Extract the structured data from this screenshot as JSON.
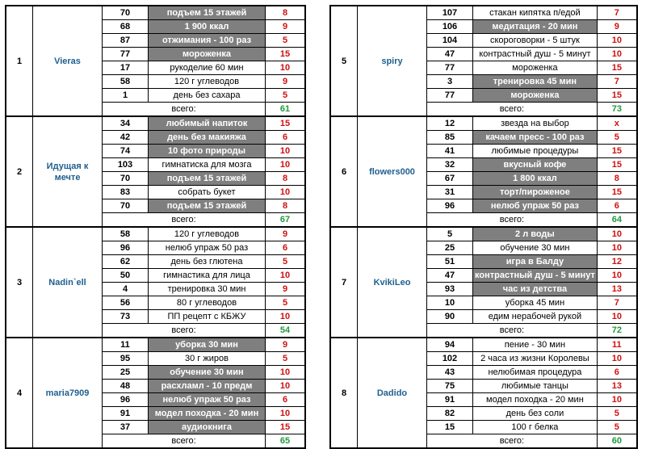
{
  "total_label": "всего:",
  "groups": [
    {
      "num": "1",
      "name": "Vieras",
      "total": "61",
      "rows": [
        {
          "val": "70",
          "task": "подъем 15 этажей",
          "score": "8",
          "hl": true
        },
        {
          "val": "68",
          "task": "1 900 ккал",
          "score": "9",
          "hl": true
        },
        {
          "val": "87",
          "task": "отжимания - 100 раз",
          "score": "5",
          "hl": true
        },
        {
          "val": "77",
          "task": "мороженка",
          "score": "15",
          "hl": true
        },
        {
          "val": "17",
          "task": "рукоделие 60 мин",
          "score": "10",
          "hl": false
        },
        {
          "val": "58",
          "task": "120 г углеводов",
          "score": "9",
          "hl": false
        },
        {
          "val": "1",
          "task": "день без сахара",
          "score": "5",
          "hl": false
        }
      ]
    },
    {
      "num": "2",
      "name": "Идущая к мечте",
      "total": "67",
      "rows": [
        {
          "val": "34",
          "task": "любимый напиток",
          "score": "15",
          "hl": true
        },
        {
          "val": "42",
          "task": "день без макияжа",
          "score": "6",
          "hl": true
        },
        {
          "val": "74",
          "task": "10 фото природы",
          "score": "10",
          "hl": true
        },
        {
          "val": "103",
          "task": "гимнатиска для мозга",
          "score": "10",
          "hl": false
        },
        {
          "val": "70",
          "task": "подъем 15 этажей",
          "score": "8",
          "hl": true
        },
        {
          "val": "83",
          "task": "собрать букет",
          "score": "10",
          "hl": false
        },
        {
          "val": "70",
          "task": "подъем 15 этажей",
          "score": "8",
          "hl": true
        }
      ]
    },
    {
      "num": "3",
      "name": "Nadin`ell",
      "total": "54",
      "rows": [
        {
          "val": "58",
          "task": "120 г углеводов",
          "score": "9",
          "hl": false
        },
        {
          "val": "96",
          "task": "нелюб упраж 50 раз",
          "score": "6",
          "hl": false
        },
        {
          "val": "62",
          "task": "день без глютена",
          "score": "5",
          "hl": false
        },
        {
          "val": "50",
          "task": "гимнастика для лица",
          "score": "10",
          "hl": false
        },
        {
          "val": "4",
          "task": "тренировка 30 мин",
          "score": "9",
          "hl": false
        },
        {
          "val": "56",
          "task": "80 г углеводов",
          "score": "5",
          "hl": false
        },
        {
          "val": "73",
          "task": "ПП рецепт с КБЖУ",
          "score": "10",
          "hl": false
        }
      ]
    },
    {
      "num": "4",
      "name": "maria7909",
      "total": "65",
      "rows": [
        {
          "val": "11",
          "task": "уборка 30 мин",
          "score": "9",
          "hl": true
        },
        {
          "val": "95",
          "task": "30 г жиров",
          "score": "5",
          "hl": false
        },
        {
          "val": "25",
          "task": "обучение 30 мин",
          "score": "10",
          "hl": true
        },
        {
          "val": "48",
          "task": "расхламл - 10 предм",
          "score": "10",
          "hl": true
        },
        {
          "val": "96",
          "task": "нелюб упраж 50 раз",
          "score": "6",
          "hl": true
        },
        {
          "val": "91",
          "task": "модел походка - 20 мин",
          "score": "10",
          "hl": true
        },
        {
          "val": "37",
          "task": "аудиокнига",
          "score": "15",
          "hl": true
        }
      ]
    },
    {
      "num": "5",
      "name": "spiry",
      "total": "73",
      "rows": [
        {
          "val": "107",
          "task": "стакан кипятка п/едой",
          "score": "7",
          "hl": false
        },
        {
          "val": "106",
          "task": "медитация - 20 мин",
          "score": "9",
          "hl": true
        },
        {
          "val": "104",
          "task": "скороговорки - 5 штук",
          "score": "10",
          "hl": false
        },
        {
          "val": "47",
          "task": "контрастный душ - 5 минут",
          "score": "10",
          "hl": false
        },
        {
          "val": "77",
          "task": "мороженка",
          "score": "15",
          "hl": false
        },
        {
          "val": "3",
          "task": "тренировка 45 мин",
          "score": "7",
          "hl": true
        },
        {
          "val": "77",
          "task": "мороженка",
          "score": "15",
          "hl": true
        }
      ]
    },
    {
      "num": "6",
      "name": "flowers000",
      "total": "64",
      "rows": [
        {
          "val": "12",
          "task": "звезда на выбор",
          "score": "х",
          "hl": false
        },
        {
          "val": "85",
          "task": "качаем пресс - 100 раз",
          "score": "5",
          "hl": true
        },
        {
          "val": "41",
          "task": "любимые процедуры",
          "score": "15",
          "hl": false
        },
        {
          "val": "32",
          "task": "вкусный кофе",
          "score": "15",
          "hl": true
        },
        {
          "val": "67",
          "task": "1 800 ккал",
          "score": "8",
          "hl": true
        },
        {
          "val": "31",
          "task": "торт/пироженое",
          "score": "15",
          "hl": true
        },
        {
          "val": "96",
          "task": "нелюб упраж 50 раз",
          "score": "6",
          "hl": true
        }
      ]
    },
    {
      "num": "7",
      "name": "KvikiLeo",
      "total": "72",
      "rows": [
        {
          "val": "5",
          "task": "2 л воды",
          "score": "10",
          "hl": true
        },
        {
          "val": "25",
          "task": "обучение 30 мин",
          "score": "10",
          "hl": false
        },
        {
          "val": "51",
          "task": "игра в Балду",
          "score": "12",
          "hl": true
        },
        {
          "val": "47",
          "task": "контрастный душ - 5 минут",
          "score": "10",
          "hl": true
        },
        {
          "val": "93",
          "task": "час из детства",
          "score": "13",
          "hl": true
        },
        {
          "val": "10",
          "task": "уборка 45 мин",
          "score": "7",
          "hl": false
        },
        {
          "val": "90",
          "task": "едим нерабочей рукой",
          "score": "10",
          "hl": false
        }
      ]
    },
    {
      "num": "8",
      "name": "Dadido",
      "total": "60",
      "rows": [
        {
          "val": "94",
          "task": "пение - 30 мин",
          "score": "11",
          "hl": false
        },
        {
          "val": "102",
          "task": "2 часа из жизни Королевы",
          "score": "10",
          "hl": false
        },
        {
          "val": "43",
          "task": "нелюбимая процедура",
          "score": "6",
          "hl": false
        },
        {
          "val": "75",
          "task": "любимые танцы",
          "score": "13",
          "hl": false
        },
        {
          "val": "91",
          "task": "модел походка - 20 мин",
          "score": "10",
          "hl": false
        },
        {
          "val": "82",
          "task": "день без соли",
          "score": "5",
          "hl": false
        },
        {
          "val": "15",
          "task": "100 г белка",
          "score": "5",
          "hl": false
        }
      ]
    }
  ]
}
